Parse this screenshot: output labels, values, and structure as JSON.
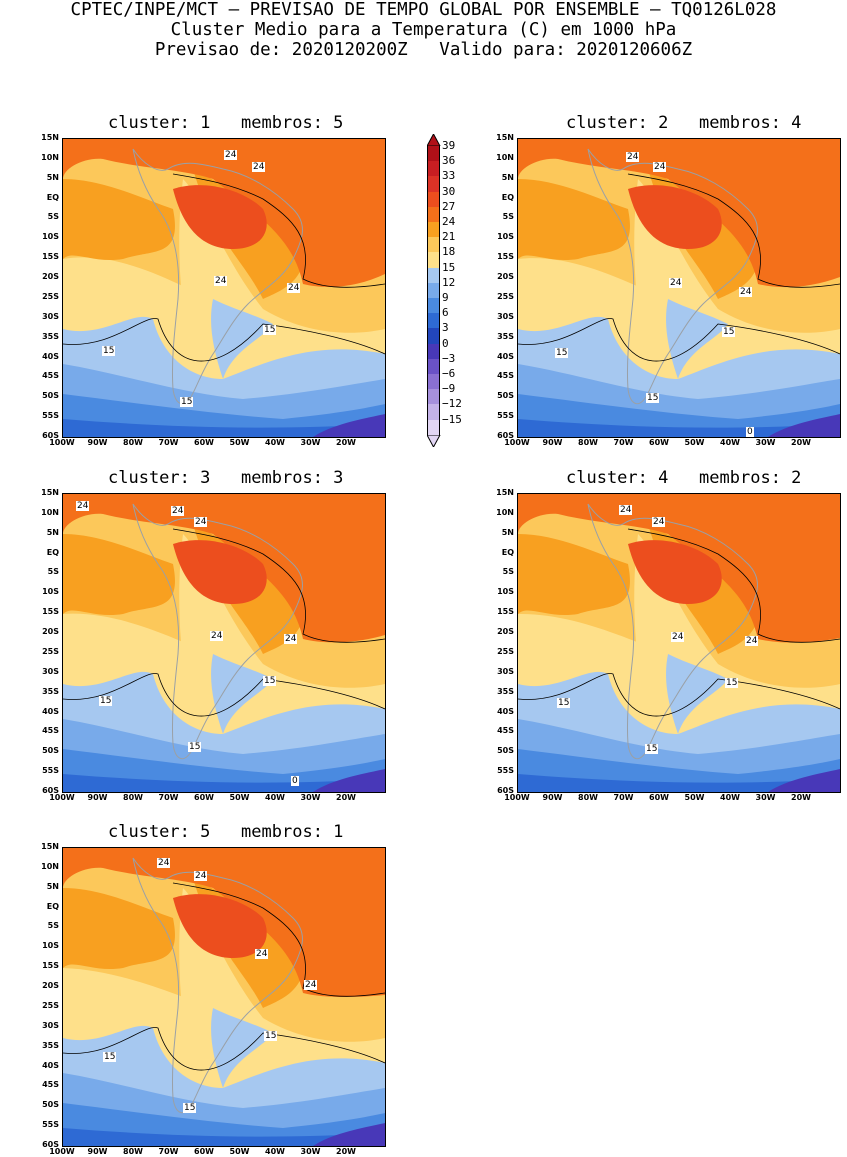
{
  "header": {
    "line1": "CPTEC/INPE/MCT – PREVISAO DE TEMPO GLOBAL POR ENSEMBLE – TQ0126L028",
    "line2": "Cluster Medio para a Temperatura (C) em 1000 hPa",
    "line3": "Previsao de: 2020120200Z   Valido para: 2020120606Z"
  },
  "axes": {
    "lat_ticks": [
      "15N",
      "10N",
      "5N",
      "EQ",
      "5S",
      "10S",
      "15S",
      "20S",
      "25S",
      "30S",
      "35S",
      "40S",
      "45S",
      "50S",
      "55S",
      "60S"
    ],
    "lon_ticks": [
      "100W",
      "90W",
      "80W",
      "70W",
      "60W",
      "50W",
      "40W",
      "30W",
      "20W"
    ]
  },
  "legend": {
    "labels": [
      "39",
      "36",
      "33",
      "30",
      "27",
      "24",
      "21",
      "18",
      "15",
      "12",
      "9",
      "6",
      "3",
      "0",
      "−3",
      "−6",
      "−9",
      "−12",
      "−15"
    ],
    "colors": [
      "#b01018",
      "#c81e22",
      "#dc3226",
      "#ec4e1e",
      "#f4701a",
      "#f8a020",
      "#fcc85a",
      "#fee08a",
      "#a6c8f0",
      "#78aaea",
      "#4a8ae0",
      "#2e6ad4",
      "#2246bc",
      "#4838b8",
      "#6a52c6",
      "#8a70d2",
      "#a690dc",
      "#c4b2e8",
      "#e2d6f4"
    ]
  },
  "panels": [
    {
      "title": "cluster: 1   membros: 5",
      "labels": [
        "24",
        "24",
        "24",
        "24",
        "15",
        "15",
        "15"
      ]
    },
    {
      "title": "cluster: 2   membros: 4",
      "labels": [
        "24",
        "24",
        "24",
        "24",
        "15",
        "15",
        "15",
        "0"
      ]
    },
    {
      "title": "cluster: 3   membros: 3",
      "labels": [
        "24",
        "24",
        "24",
        "24",
        "24",
        "15",
        "15",
        "15",
        "0"
      ]
    },
    {
      "title": "cluster: 4   membros: 2",
      "labels": [
        "24",
        "24",
        "24",
        "24",
        "15",
        "15",
        "15"
      ]
    },
    {
      "title": "cluster: 5   membros: 1",
      "labels": [
        "24",
        "24",
        "24",
        "24",
        "15",
        "15",
        "15"
      ]
    }
  ]
}
